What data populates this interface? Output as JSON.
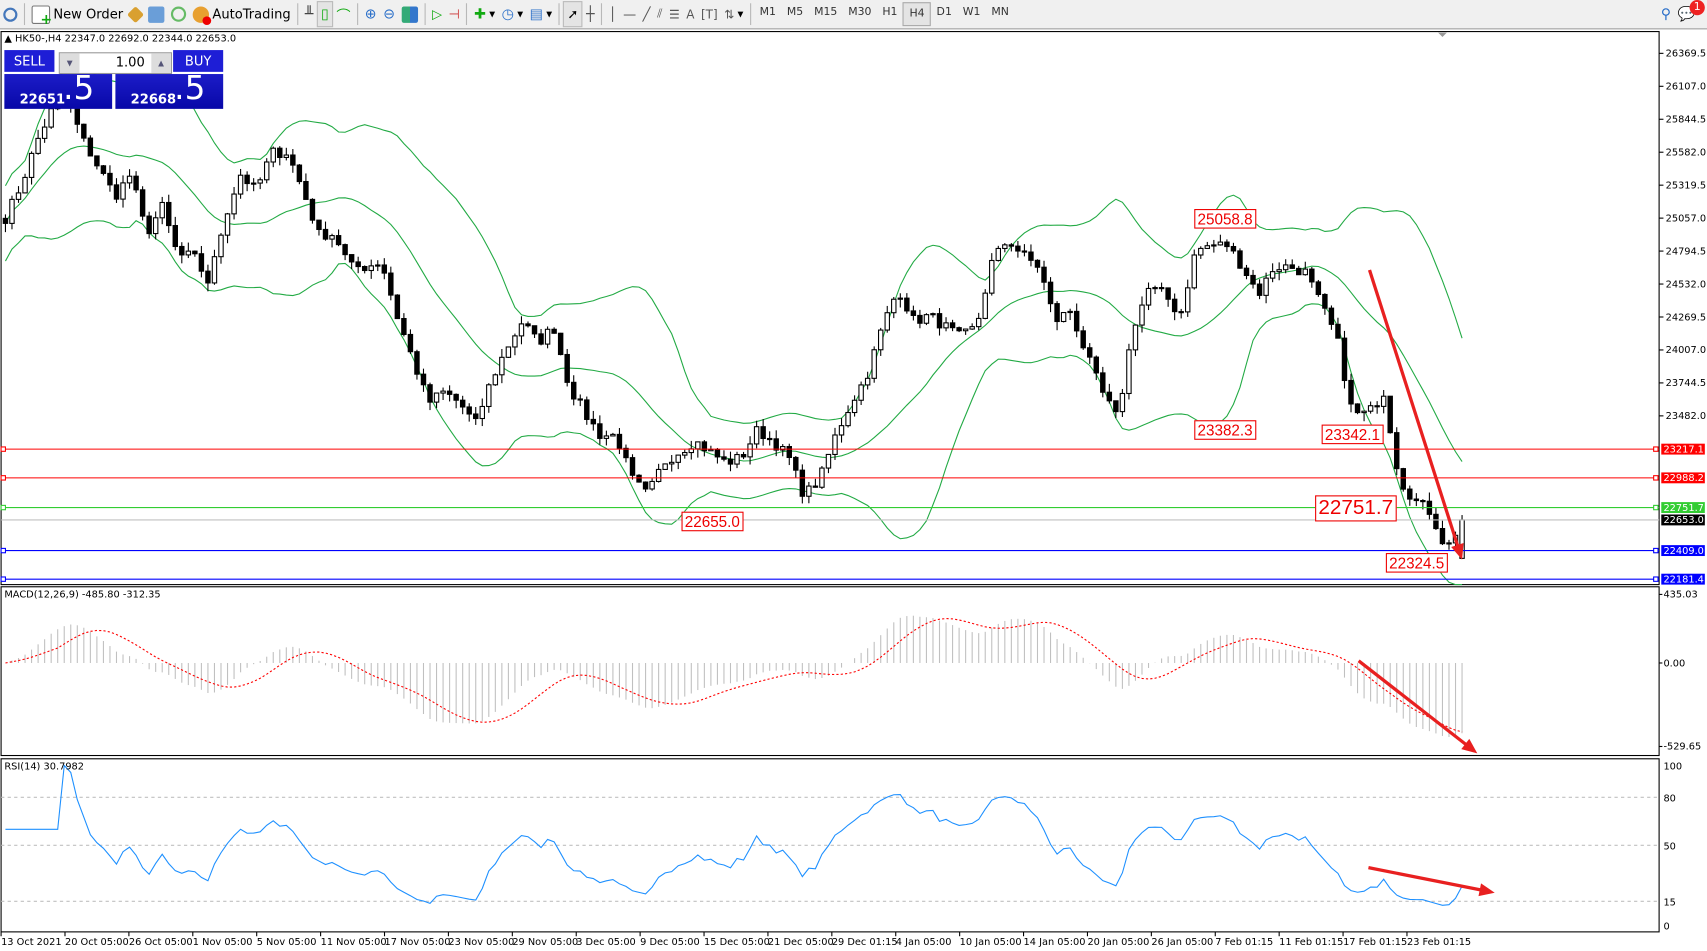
{
  "toolbar": {
    "new_order": "New Order",
    "autotrading": "AutoTrading",
    "timeframes": [
      "M1",
      "M5",
      "M15",
      "M30",
      "H1",
      "H4",
      "D1",
      "W1",
      "MN"
    ],
    "active_timeframe": "H4",
    "notification_count": "1"
  },
  "chart": {
    "header": "HK50-,H4  22347.0 22692.0 22344.0 22653.0",
    "one_click": {
      "sell_label": "SELL",
      "buy_label": "BUY",
      "lot": "1.00",
      "sell_price_main": "22651",
      "sell_price_big": ".5",
      "buy_price_main": "22668",
      "buy_price_big": ".5"
    },
    "price_axis": [
      "26369.5",
      "26107.0",
      "25844.5",
      "25582.0",
      "25319.5",
      "25057.0",
      "24794.5",
      "24532.0",
      "24269.5",
      "24007.0",
      "23744.5",
      "23482.0"
    ],
    "price_axis_values": [
      26369.5,
      26107.0,
      25844.5,
      25582.0,
      25319.5,
      25057.0,
      24794.5,
      24532.0,
      24269.5,
      24007.0,
      23744.5,
      23482.0
    ],
    "hlines": [
      {
        "label": "23217.1",
        "value": 23217.1,
        "color": "#ff0000"
      },
      {
        "label": "22988.2",
        "value": 22988.2,
        "color": "#ff0000"
      },
      {
        "label": "22751.7",
        "value": 22751.7,
        "color": "#32cd32"
      },
      {
        "label": "22653.0",
        "value": 22653.0,
        "color": "#000000"
      },
      {
        "label": "22409.0",
        "value": 22409.0,
        "color": "#0000ff"
      },
      {
        "label": "22181.4",
        "value": 22181.4,
        "color": "#0000ff"
      }
    ],
    "annotations": [
      "25058.8",
      "23382.3",
      "23342.1",
      "22655.0",
      "22751.7",
      "22324.5"
    ],
    "time_axis": [
      "13 Oct 2021",
      "20 Oct 05:00",
      "26 Oct 05:00",
      "1 Nov 05:00",
      "5 Nov 05:00",
      "11 Nov 05:00",
      "17 Nov 05:00",
      "23 Nov 05:00",
      "29 Nov 05:00",
      "3 Dec 05:00",
      "9 Dec 05:00",
      "15 Dec 05:00",
      "21 Dec 05:00",
      "29 Dec 01:15",
      "4 Jan 05:00",
      "10 Jan 05:00",
      "14 Jan 05:00",
      "20 Jan 05:00",
      "26 Jan 05:00",
      "7 Feb 01:15",
      "11 Feb 01:15",
      "17 Feb 01:15",
      "23 Feb 01:15"
    ],
    "colors": {
      "bands": "#22aa44",
      "macd_hist": "#c0c0c0",
      "macd_signal": "#ff0000",
      "rsi": "#1e90ff",
      "arrow": "#e82020"
    }
  },
  "macd": {
    "header": "MACD(12,26,9) -485.80 -312.35",
    "axis": [
      "435.03",
      "0.00",
      "-529.65"
    ],
    "axis_values": [
      435.03,
      0,
      -529.65
    ]
  },
  "rsi": {
    "header": "RSI(14) 30.7982",
    "axis": [
      "100",
      "80",
      "50",
      "15",
      "0"
    ],
    "axis_values": [
      100,
      80,
      50,
      15,
      0
    ],
    "levels": [
      80,
      50,
      15
    ]
  },
  "chart_data": {
    "type": "candlestick",
    "symbol": "HK50-",
    "timeframe": "H4",
    "last_bar": {
      "open": 22347.0,
      "high": 22692.0,
      "low": 22344.0,
      "close": 22653.0
    },
    "approx_close_path": [
      25060,
      25320,
      25667,
      25927,
      25971,
      25667,
      25450,
      25233,
      25407,
      24930,
      25147,
      24757,
      24757,
      24540,
      25060,
      25407,
      25277,
      25580,
      25580,
      25277,
      24930,
      24930,
      24670,
      24670,
      24713,
      24280,
      23933,
      23586,
      23672,
      23586,
      23412,
      23759,
      24020,
      24236,
      24063,
      24193,
      23716,
      23499,
      23326,
      23326,
      22979,
      22848,
      23109,
      23196,
      23282,
      23196,
      23109,
      23152,
      23369,
      23282,
      23152,
      22848,
      22979,
      23326,
      23586,
      23802,
      24193,
      24497,
      24236,
      24280,
      24193,
      24106,
      24193,
      24713,
      24887,
      24757,
      24670,
      24236,
      24323,
      23976,
      23672,
      23456,
      24193,
      24497,
      24453,
      24280,
      24800,
      24843,
      24843,
      24670,
      24453,
      24670,
      24670,
      24626,
      24366,
      24106,
      23499,
      23499,
      23672,
      22979,
      22805,
      22718,
      22415,
      22653
    ]
  }
}
